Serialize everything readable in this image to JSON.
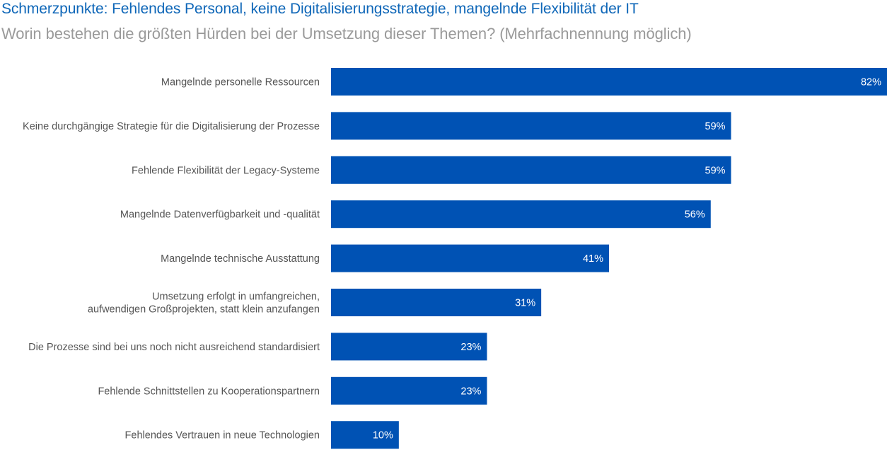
{
  "chart_data": {
    "type": "bar",
    "orientation": "horizontal",
    "title": "Schmerzpunkte: Fehlendes Personal, keine Digitalisierungsstrategie, mangelnde Flexibilität der IT",
    "subtitle": "Worin bestehen die größten Hürden bei der Umsetzung dieser Themen? (Mehrfachnennung möglich)",
    "value_suffix": "%",
    "xlim": [
      0,
      82
    ],
    "grid": false,
    "legend": "none",
    "bar_color": "#0052b4",
    "categories": [
      [
        "Mangelnde personelle Ressourcen"
      ],
      [
        "Keine durchgängige Strategie für die Digitalisierung der Prozesse"
      ],
      [
        "Fehlende Flexibilität der Legacy-Systeme"
      ],
      [
        "Mangelnde Datenverfügbarkeit und -qualität"
      ],
      [
        "Mangelnde technische Ausstattung"
      ],
      [
        "Umsetzung erfolgt in umfangreichen,",
        "aufwendigen Großprojekten, statt klein anzufangen"
      ],
      [
        "Die Prozesse sind bei uns noch nicht ausreichend standardisiert"
      ],
      [
        "Fehlende Schnittstellen zu Kooperationspartnern"
      ],
      [
        "Fehlendes Vertrauen in neue Technologien"
      ]
    ],
    "values": [
      82,
      59,
      59,
      56,
      41,
      31,
      23,
      23,
      10
    ]
  }
}
